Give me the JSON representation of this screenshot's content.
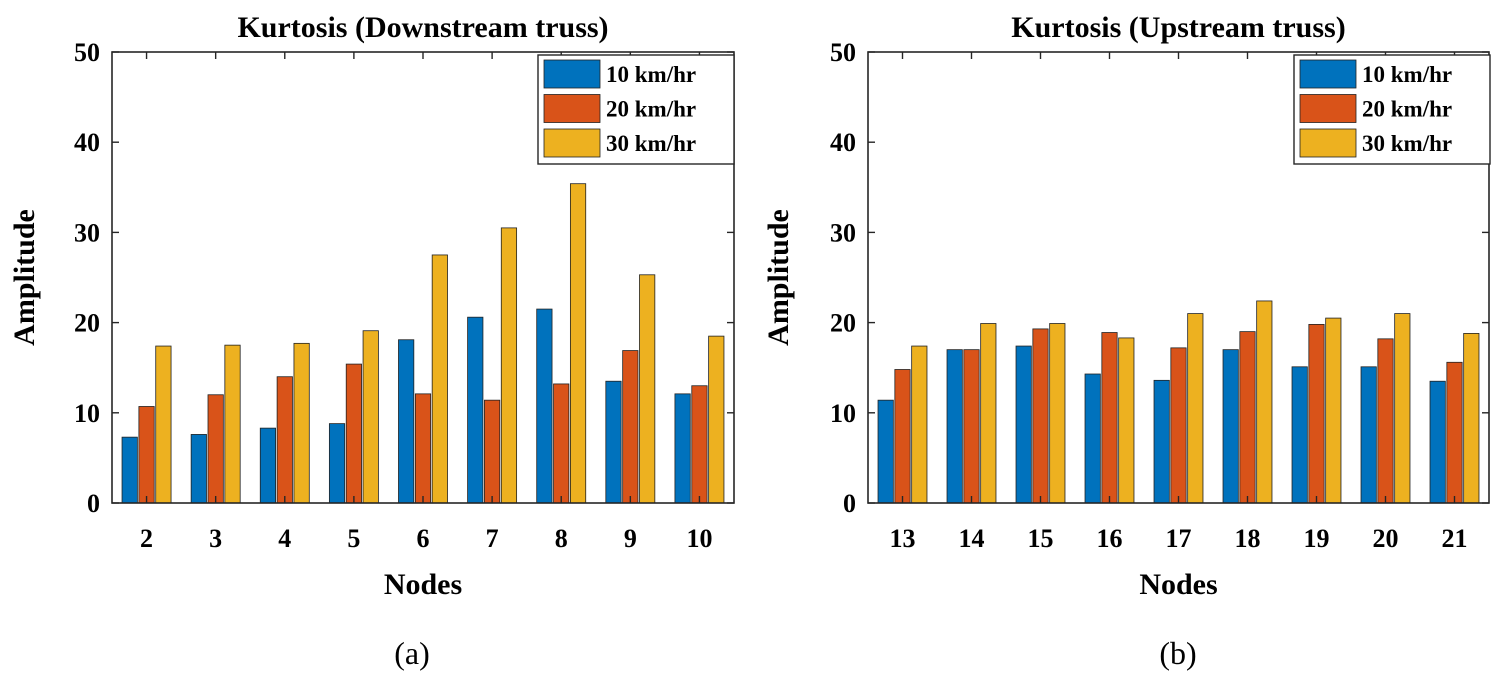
{
  "chart_data": [
    {
      "type": "bar",
      "title": "Kurtosis (Downstream truss)",
      "xlabel": "Nodes",
      "ylabel": "Amplitude",
      "caption": "(a)",
      "ylim": [
        0,
        50
      ],
      "yticks": [
        0,
        10,
        20,
        30,
        40,
        50
      ],
      "legend_position": "top-right",
      "categories": [
        "2",
        "3",
        "4",
        "5",
        "6",
        "7",
        "8",
        "9",
        "10"
      ],
      "series": [
        {
          "name": "10 km/hr",
          "color": "#0072BD",
          "values": [
            7.3,
            7.6,
            8.3,
            8.8,
            18.1,
            20.6,
            21.5,
            13.5,
            12.1
          ]
        },
        {
          "name": "20 km/hr",
          "color": "#D95319",
          "values": [
            10.7,
            12.0,
            14.0,
            15.4,
            12.1,
            11.4,
            13.2,
            16.9,
            13.0
          ]
        },
        {
          "name": "30 km/hr",
          "color": "#EDB120",
          "values": [
            17.4,
            17.5,
            17.7,
            19.1,
            27.5,
            30.5,
            35.4,
            25.3,
            18.5
          ]
        }
      ]
    },
    {
      "type": "bar",
      "title": "Kurtosis (Upstream truss)",
      "xlabel": "Nodes",
      "ylabel": "Amplitude",
      "caption": "(b)",
      "ylim": [
        0,
        50
      ],
      "yticks": [
        0,
        10,
        20,
        30,
        40,
        50
      ],
      "legend_position": "top-right",
      "categories": [
        "13",
        "14",
        "15",
        "16",
        "17",
        "18",
        "19",
        "20",
        "21"
      ],
      "series": [
        {
          "name": "10 km/hr",
          "color": "#0072BD",
          "values": [
            11.4,
            17.0,
            17.4,
            14.3,
            13.6,
            17.0,
            15.1,
            15.1,
            13.5
          ]
        },
        {
          "name": "20 km/hr",
          "color": "#D95319",
          "values": [
            14.8,
            17.0,
            19.3,
            18.9,
            17.2,
            19.0,
            19.8,
            18.2,
            15.6
          ]
        },
        {
          "name": "30 km/hr",
          "color": "#EDB120",
          "values": [
            17.4,
            19.9,
            19.9,
            18.3,
            21.0,
            22.4,
            20.5,
            21.0,
            18.8
          ]
        }
      ]
    }
  ]
}
